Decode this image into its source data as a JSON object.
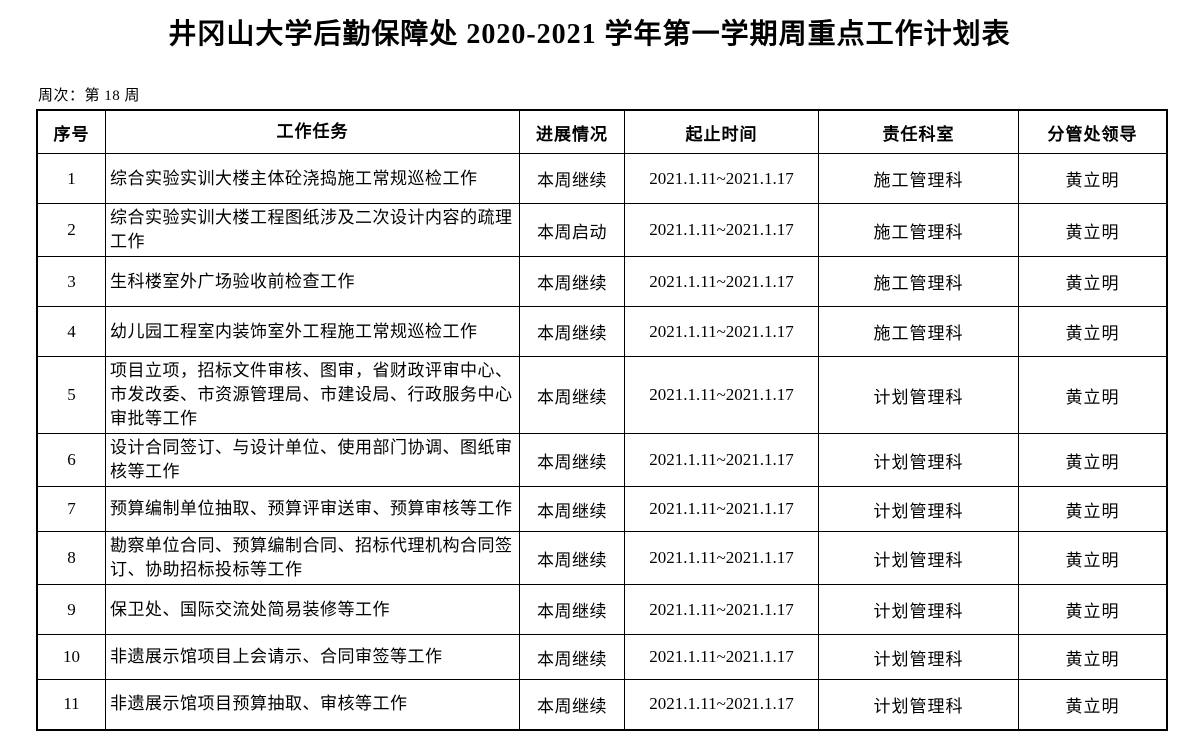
{
  "page": {
    "title": "井冈山大学后勤保障处 2020-2021 学年第一学期周重点工作计划表",
    "week_label": "周次：第 18 周"
  },
  "colors": {
    "text": "#000000",
    "border": "#000000",
    "background": "#ffffff"
  },
  "table": {
    "columns": [
      {
        "key": "index",
        "label": "序号"
      },
      {
        "key": "task",
        "label": "工作任务"
      },
      {
        "key": "progress",
        "label": "进展情况"
      },
      {
        "key": "period",
        "label": "起止时间"
      },
      {
        "key": "department",
        "label": "责任科室"
      },
      {
        "key": "leader",
        "label": "分管处领导"
      }
    ],
    "rows": [
      {
        "index": "1",
        "task": "综合实验实训大楼主体砼浇捣施工常规巡检工作",
        "progress": "本周继续",
        "period": "2021.1.11~2021.1.17",
        "department": "施工管理科",
        "leader": "黄立明"
      },
      {
        "index": "2",
        "task": "综合实验实训大楼工程图纸涉及二次设计内容的疏理工作",
        "progress": "本周启动",
        "period": "2021.1.11~2021.1.17",
        "department": "施工管理科",
        "leader": "黄立明"
      },
      {
        "index": "3",
        "task": "生科楼室外广场验收前检查工作",
        "progress": "本周继续",
        "period": "2021.1.11~2021.1.17",
        "department": "施工管理科",
        "leader": "黄立明"
      },
      {
        "index": "4",
        "task": "幼儿园工程室内装饰室外工程施工常规巡检工作",
        "progress": "本周继续",
        "period": "2021.1.11~2021.1.17",
        "department": "施工管理科",
        "leader": "黄立明"
      },
      {
        "index": "5",
        "task": "项目立项，招标文件审核、图审，省财政评审中心、市发改委、市资源管理局、市建设局、行政服务中心审批等工作",
        "progress": "本周继续",
        "period": "2021.1.11~2021.1.17",
        "department": "计划管理科",
        "leader": "黄立明"
      },
      {
        "index": "6",
        "task": "设计合同签订、与设计单位、使用部门协调、图纸审核等工作",
        "progress": "本周继续",
        "period": "2021.1.11~2021.1.17",
        "department": "计划管理科",
        "leader": "黄立明"
      },
      {
        "index": "7",
        "task": "预算编制单位抽取、预算评审送审、预算审核等工作",
        "progress": "本周继续",
        "period": "2021.1.11~2021.1.17",
        "department": "计划管理科",
        "leader": "黄立明"
      },
      {
        "index": "8",
        "task": "勘察单位合同、预算编制合同、招标代理机构合同签订、协助招标投标等工作",
        "progress": "本周继续",
        "period": "2021.1.11~2021.1.17",
        "department": "计划管理科",
        "leader": "黄立明"
      },
      {
        "index": "9",
        "task": "保卫处、国际交流处简易装修等工作",
        "progress": "本周继续",
        "period": "2021.1.11~2021.1.17",
        "department": "计划管理科",
        "leader": "黄立明"
      },
      {
        "index": "10",
        "task": "非遗展示馆项目上会请示、合同审签等工作",
        "progress": "本周继续",
        "period": "2021.1.11~2021.1.17",
        "department": "计划管理科",
        "leader": "黄立明"
      },
      {
        "index": "11",
        "task": "非遗展示馆项目预算抽取、审核等工作",
        "progress": "本周继续",
        "period": "2021.1.11~2021.1.17",
        "department": "计划管理科",
        "leader": "黄立明"
      }
    ]
  }
}
